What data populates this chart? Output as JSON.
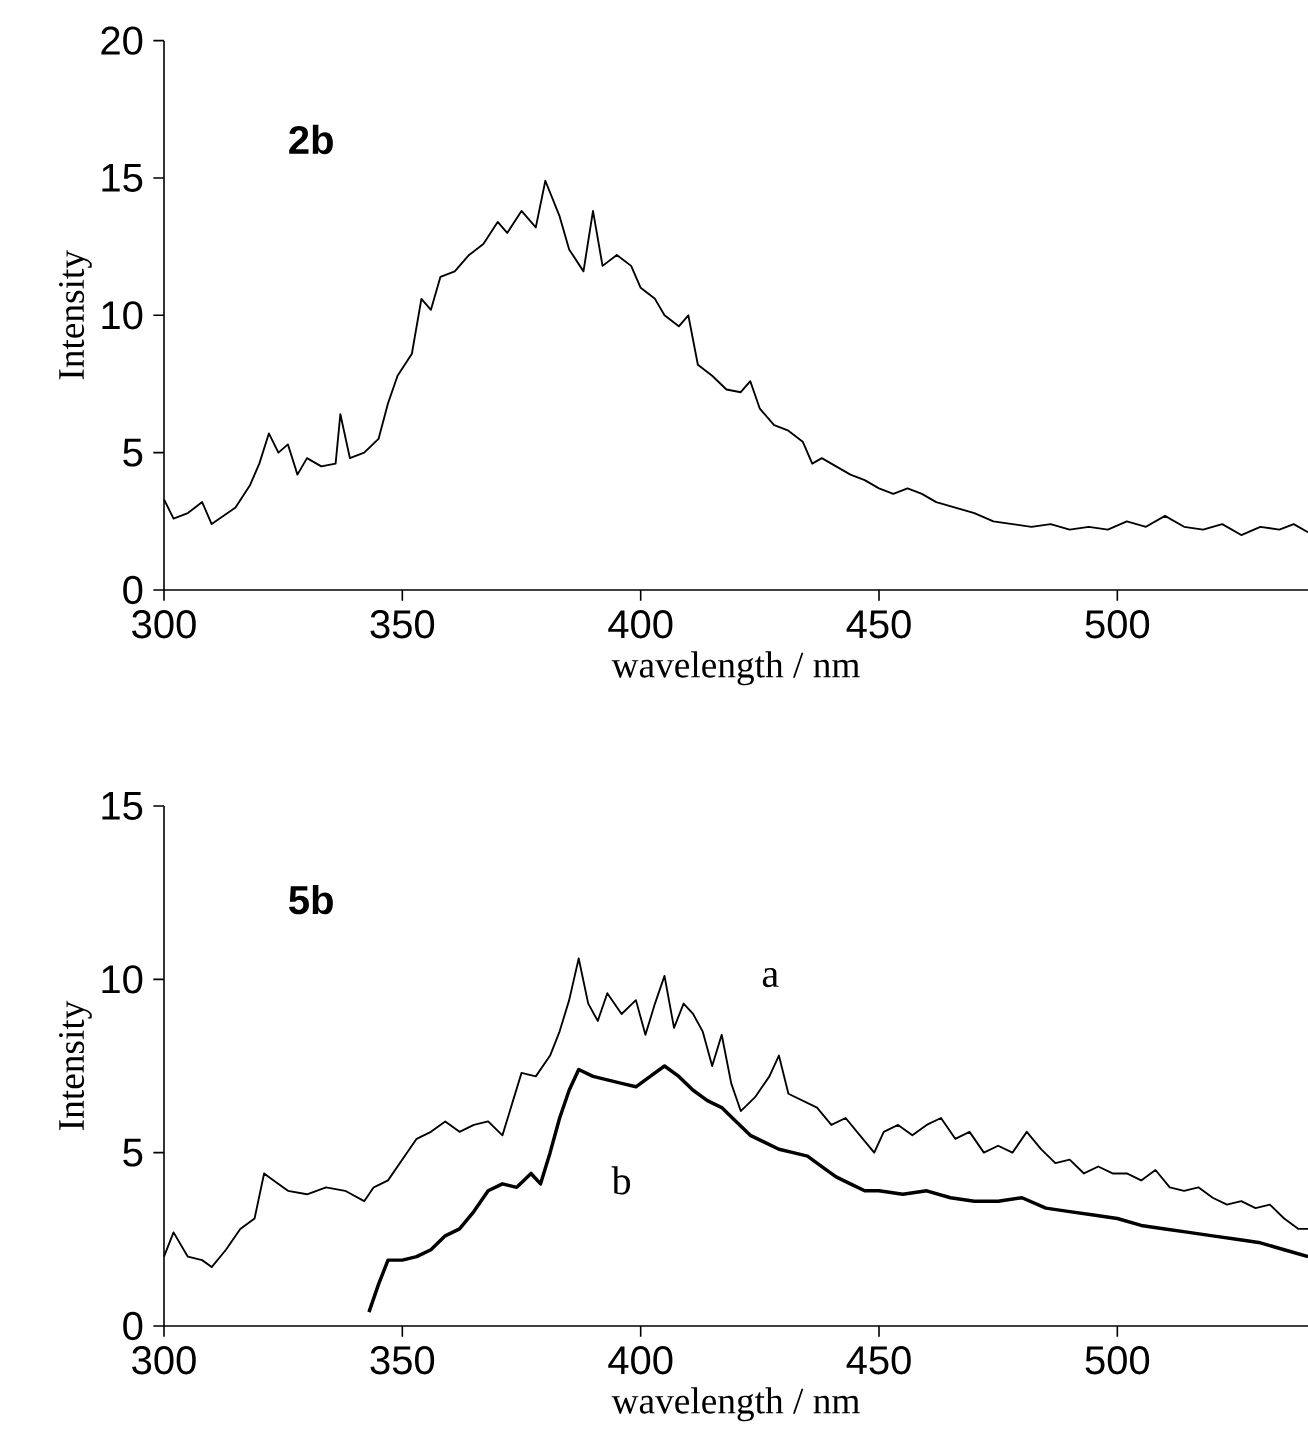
{
  "chart_data": [
    {
      "type": "line",
      "xlabel": "wavelength / nm",
      "ylabel": "Intensity",
      "annotations": [
        "2b"
      ],
      "xlim": [
        300,
        540
      ],
      "ylim": [
        0,
        20
      ],
      "xticks": [
        300,
        350,
        400,
        450,
        500
      ],
      "yticks": [
        0,
        5,
        10,
        15,
        20
      ],
      "series": [
        {
          "color": "#000000",
          "x": [
            300,
            302,
            305,
            308,
            310,
            315,
            318,
            320,
            322,
            324,
            326,
            328,
            330,
            333,
            336,
            337,
            339,
            342,
            345,
            347,
            349,
            352,
            354,
            356,
            358,
            361,
            364,
            367,
            370,
            372,
            375,
            378,
            380,
            383,
            385,
            388,
            390,
            392,
            395,
            398,
            400,
            403,
            405,
            408,
            410,
            412,
            415,
            418,
            421,
            423,
            425,
            428,
            431,
            434,
            436,
            438,
            441,
            444,
            447,
            450,
            453,
            456,
            459,
            462,
            466,
            470,
            474,
            478,
            482,
            486,
            490,
            494,
            498,
            502,
            506,
            510,
            514,
            518,
            522,
            526,
            530,
            534,
            537,
            540
          ],
          "values": [
            3.3,
            2.6,
            2.8,
            3.2,
            2.4,
            3.0,
            3.8,
            4.6,
            5.7,
            5.0,
            5.3,
            4.2,
            4.8,
            4.5,
            4.6,
            6.4,
            4.8,
            5.0,
            5.5,
            6.8,
            7.8,
            8.6,
            10.6,
            10.2,
            11.4,
            11.6,
            12.2,
            12.6,
            13.4,
            13.0,
            13.8,
            13.2,
            14.9,
            13.6,
            12.4,
            11.6,
            13.8,
            11.8,
            12.2,
            11.8,
            11.0,
            10.6,
            10.0,
            9.6,
            10.0,
            8.2,
            7.8,
            7.3,
            7.2,
            7.6,
            6.6,
            6.0,
            5.8,
            5.4,
            4.6,
            4.8,
            4.5,
            4.2,
            4.0,
            3.7,
            3.5,
            3.7,
            3.5,
            3.2,
            3.0,
            2.8,
            2.5,
            2.4,
            2.3,
            2.4,
            2.2,
            2.3,
            2.2,
            2.5,
            2.3,
            2.7,
            2.3,
            2.2,
            2.4,
            2.0,
            2.3,
            2.2,
            2.4,
            2.1
          ]
        }
      ]
    },
    {
      "type": "line",
      "xlabel": "wavelength / nm",
      "ylabel": "Intensity",
      "annotations": [
        "5b"
      ],
      "xlim": [
        300,
        540
      ],
      "ylim": [
        0,
        15
      ],
      "xticks": [
        300,
        350,
        400,
        450,
        500
      ],
      "yticks": [
        0,
        5,
        10,
        15
      ],
      "series": [
        {
          "name": "a",
          "color": "#000000",
          "x": [
            300,
            302,
            305,
            308,
            310,
            313,
            316,
            319,
            321,
            323,
            326,
            330,
            334,
            338,
            342,
            344,
            347,
            350,
            353,
            356,
            359,
            362,
            365,
            368,
            371,
            373,
            375,
            378,
            381,
            383,
            385,
            387,
            389,
            391,
            393,
            396,
            399,
            401,
            403,
            405,
            407,
            409,
            411,
            413,
            415,
            417,
            419,
            421,
            424,
            427,
            429,
            431,
            434,
            437,
            440,
            443,
            446,
            449,
            451,
            454,
            457,
            460,
            463,
            466,
            469,
            472,
            475,
            478,
            481,
            484,
            487,
            490,
            493,
            496,
            499,
            502,
            505,
            508,
            511,
            514,
            517,
            520,
            523,
            526,
            529,
            532,
            535,
            538,
            540
          ],
          "values": [
            2.0,
            2.7,
            2.0,
            1.9,
            1.7,
            2.2,
            2.8,
            3.1,
            4.4,
            4.2,
            3.9,
            3.8,
            4.0,
            3.9,
            3.6,
            4.0,
            4.2,
            4.8,
            5.4,
            5.6,
            5.9,
            5.6,
            5.8,
            5.9,
            5.5,
            6.4,
            7.3,
            7.2,
            7.8,
            8.5,
            9.4,
            10.6,
            9.3,
            8.8,
            9.6,
            9.0,
            9.4,
            8.4,
            9.3,
            10.1,
            8.6,
            9.3,
            9.0,
            8.5,
            7.5,
            8.4,
            7.0,
            6.2,
            6.6,
            7.2,
            7.8,
            6.7,
            6.5,
            6.3,
            5.8,
            6.0,
            5.5,
            5.0,
            5.6,
            5.8,
            5.5,
            5.8,
            6.0,
            5.4,
            5.6,
            5.0,
            5.2,
            5.0,
            5.6,
            5.1,
            4.7,
            4.8,
            4.4,
            4.6,
            4.4,
            4.4,
            4.2,
            4.5,
            4.0,
            3.9,
            4.0,
            3.7,
            3.5,
            3.6,
            3.4,
            3.5,
            3.1,
            2.8,
            2.8
          ]
        },
        {
          "name": "b",
          "color": "#000000",
          "x": [
            343,
            345,
            347,
            350,
            353,
            356,
            359,
            362,
            365,
            368,
            371,
            374,
            377,
            379,
            381,
            383,
            385,
            387,
            390,
            393,
            396,
            399,
            402,
            405,
            408,
            411,
            414,
            417,
            420,
            423,
            426,
            429,
            432,
            435,
            438,
            441,
            444,
            447,
            450,
            455,
            460,
            465,
            470,
            475,
            480,
            485,
            490,
            495,
            500,
            505,
            510,
            515,
            520,
            525,
            530,
            535,
            540
          ],
          "values": [
            0.4,
            1.2,
            1.9,
            1.9,
            2.0,
            2.2,
            2.6,
            2.8,
            3.3,
            3.9,
            4.1,
            4.0,
            4.4,
            4.1,
            5.0,
            6.0,
            6.8,
            7.4,
            7.2,
            7.1,
            7.0,
            6.9,
            7.2,
            7.5,
            7.2,
            6.8,
            6.5,
            6.3,
            5.9,
            5.5,
            5.3,
            5.1,
            5.0,
            4.9,
            4.6,
            4.3,
            4.1,
            3.9,
            3.9,
            3.8,
            3.9,
            3.7,
            3.6,
            3.6,
            3.7,
            3.4,
            3.3,
            3.2,
            3.1,
            2.9,
            2.8,
            2.7,
            2.6,
            2.5,
            2.4,
            2.2,
            2.0
          ]
        }
      ]
    }
  ]
}
